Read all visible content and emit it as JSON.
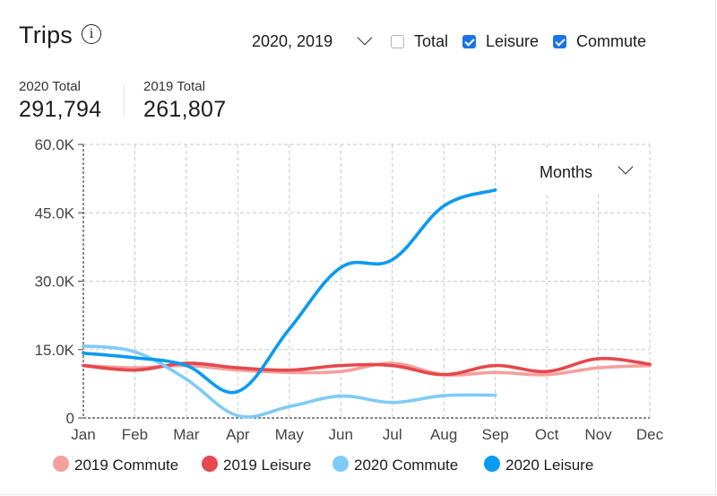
{
  "header": {
    "title": "Trips",
    "info_icon": "info-icon",
    "years_selected": "2020, 2019",
    "filters": [
      {
        "label": "Total",
        "checked": false
      },
      {
        "label": "Leisure",
        "checked": true
      },
      {
        "label": "Commute",
        "checked": true
      }
    ]
  },
  "stats": [
    {
      "label": "2020 Total",
      "value": "291,794"
    },
    {
      "label": "2019 Total",
      "value": "261,807"
    }
  ],
  "period_select": "Months",
  "chart_data": {
    "type": "line",
    "categories": [
      "Jan",
      "Feb",
      "Mar",
      "Apr",
      "May",
      "Jun",
      "Jul",
      "Aug",
      "Sep",
      "Oct",
      "Nov",
      "Dec"
    ],
    "y_ticks": [
      "0",
      "15.0K",
      "30.0K",
      "45.0K",
      "60.0K"
    ],
    "ylim": [
      0,
      60000
    ],
    "grid": true,
    "legend_position": "bottom",
    "series": [
      {
        "name": "2019 Commute",
        "color": "#f4a09d",
        "values": [
          11500,
          11000,
          11500,
          10500,
          10000,
          10200,
          12000,
          9500,
          10000,
          9500,
          11000,
          11500
        ]
      },
      {
        "name": "2019 Leisure",
        "color": "#e5484d",
        "values": [
          11500,
          10500,
          12000,
          11000,
          10500,
          11500,
          11500,
          9500,
          11500,
          10200,
          13000,
          11800
        ]
      },
      {
        "name": "2020 Commute",
        "color": "#7fcbf7",
        "values": [
          15800,
          14500,
          8500,
          500,
          2500,
          4800,
          3400,
          4900,
          5000,
          null,
          null,
          null
        ]
      },
      {
        "name": "2020 Leisure",
        "color": "#0a9af0",
        "values": [
          14200,
          13200,
          11500,
          5800,
          19500,
          33000,
          34700,
          46500,
          50000,
          null,
          null,
          null
        ]
      }
    ]
  }
}
